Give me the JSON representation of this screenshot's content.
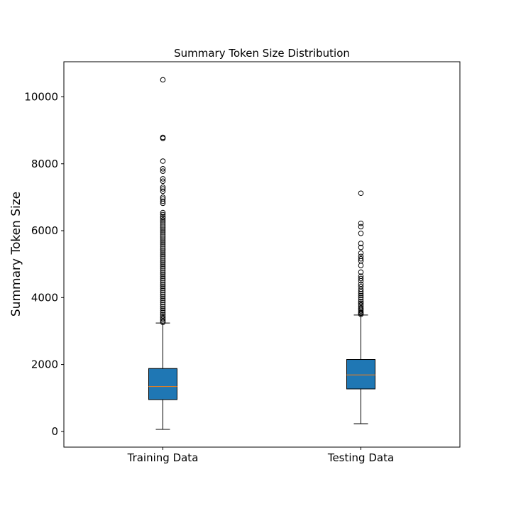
{
  "chart_data": {
    "type": "box",
    "title": "Summary Token Size Distribution",
    "xlabel": "",
    "ylabel": "Summary Token Size",
    "ylim": [
      -470,
      11050
    ],
    "yticks": [
      0,
      2000,
      4000,
      6000,
      8000,
      10000
    ],
    "grid": false,
    "categories": [
      "Training Data",
      "Testing Data"
    ],
    "box_color": "#1f77b4",
    "median_color": "#ff7f0e",
    "boxes": [
      {
        "name": "Training Data",
        "whisker_low": 60,
        "q1": 950,
        "median": 1340,
        "q3": 1880,
        "whisker_high": 3240,
        "outliers": [
          3260,
          3300,
          3350,
          3400,
          3450,
          3500,
          3560,
          3620,
          3680,
          3740,
          3800,
          3860,
          3920,
          3980,
          4040,
          4100,
          4160,
          4220,
          4280,
          4340,
          4400,
          4460,
          4520,
          4580,
          4640,
          4700,
          4760,
          4820,
          4880,
          4940,
          5000,
          5060,
          5120,
          5180,
          5240,
          5300,
          5360,
          5420,
          5480,
          5540,
          5600,
          5660,
          5720,
          5780,
          5840,
          5900,
          5960,
          6020,
          6080,
          6140,
          6200,
          6260,
          6320,
          6380,
          6420,
          6480,
          6540,
          6820,
          6880,
          6950,
          7000,
          7180,
          7250,
          7300,
          7480,
          7550,
          7780,
          7850,
          8080,
          8760,
          8790,
          10510
        ]
      },
      {
        "name": "Testing Data",
        "whisker_low": 230,
        "q1": 1270,
        "median": 1690,
        "q3": 2150,
        "whisker_high": 3480,
        "outliers": [
          3500,
          3530,
          3560,
          3600,
          3640,
          3680,
          3730,
          3780,
          3830,
          3880,
          3940,
          4000,
          4060,
          4120,
          4180,
          4250,
          4330,
          4400,
          4500,
          4570,
          4640,
          4760,
          4960,
          5100,
          5160,
          5230,
          5330,
          5500,
          5620,
          5920,
          6120,
          6220,
          7120
        ]
      }
    ]
  }
}
